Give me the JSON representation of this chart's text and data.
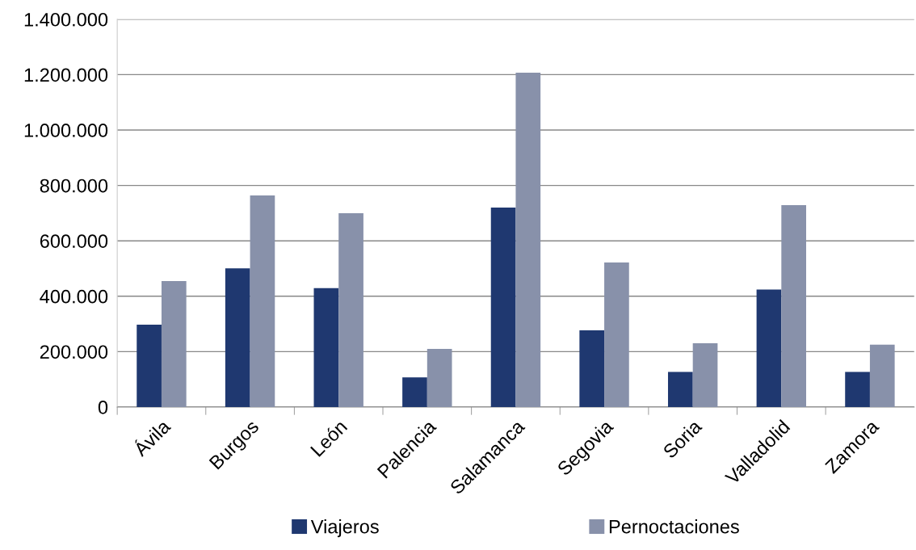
{
  "chart_data": {
    "type": "bar",
    "categories": [
      "Ávila",
      "Burgos",
      "León",
      "Palencia",
      "Salamanca",
      "Segovia",
      "Soria",
      "Valladolid",
      "Zamora"
    ],
    "series": [
      {
        "name": "Viajeros",
        "color": "#1f3870",
        "values": [
          297000,
          501000,
          429000,
          107000,
          720000,
          277000,
          127000,
          424000,
          127000
        ]
      },
      {
        "name": "Pernoctaciones",
        "color": "#8891aa",
        "values": [
          455000,
          764000,
          700000,
          210000,
          1207000,
          522000,
          230000,
          729000,
          225000
        ]
      }
    ],
    "ylim": [
      0,
      1400000
    ],
    "yticks": [
      0,
      {
        "value": 200000,
        "label": "200.000"
      },
      {
        "value": 400000,
        "label": "400.000"
      },
      {
        "value": 600000,
        "label": "600.000"
      },
      {
        "value": 800000,
        "label": "800.000"
      },
      {
        "value": 1000000,
        "label": "1.000.000"
      },
      {
        "value": 1200000,
        "label": "1.200.000"
      },
      {
        "value": 1400000,
        "label": "1.400.000"
      }
    ],
    "grid": "y",
    "legend": "bottom"
  }
}
